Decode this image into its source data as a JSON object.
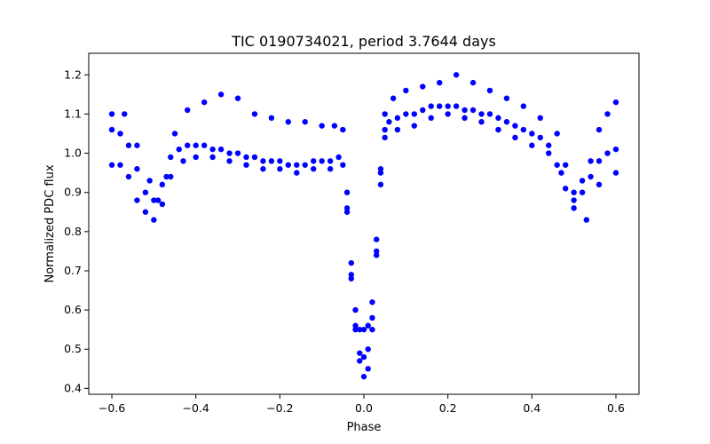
{
  "chart_data": {
    "type": "scatter",
    "title": "TIC 0190734021, period 3.7644 days",
    "xlabel": "Phase",
    "ylabel": "Normalized PDC flux",
    "xlim": [
      -0.655,
      0.655
    ],
    "ylim": [
      0.385,
      1.255
    ],
    "xticks": [
      -0.6,
      -0.4,
      -0.2,
      0.0,
      0.2,
      0.4,
      0.6
    ],
    "xtick_labels": [
      "−0.6",
      "−0.4",
      "−0.2",
      "0.0",
      "0.2",
      "0.4",
      "0.6"
    ],
    "yticks": [
      0.4,
      0.5,
      0.6,
      0.7,
      0.8,
      0.9,
      1.0,
      1.1,
      1.2
    ],
    "ytick_labels": [
      "0.4",
      "0.5",
      "0.6",
      "0.7",
      "0.8",
      "0.9",
      "1.0",
      "1.1",
      "1.2"
    ],
    "grid": false,
    "legend": "none",
    "marker_color": "#0000ff",
    "series": [
      {
        "x": [
          -0.6,
          -0.58,
          -0.56,
          -0.54,
          -0.52,
          -0.5,
          -0.48,
          -0.46,
          -0.44,
          -0.42,
          -0.4,
          -0.38,
          -0.36,
          -0.34,
          -0.32,
          -0.3,
          -0.28,
          -0.26,
          -0.24,
          -0.22,
          -0.2,
          -0.18,
          -0.16,
          -0.14,
          -0.12,
          -0.1,
          -0.08,
          -0.06,
          -0.04,
          -0.03,
          -0.02,
          -0.01,
          0.0,
          0.01,
          0.02,
          0.03,
          0.04,
          0.05,
          0.06,
          0.08,
          0.1,
          0.12,
          0.14,
          0.16,
          0.18,
          0.2,
          0.22,
          0.24,
          0.26,
          0.28,
          0.3,
          0.32,
          0.34,
          0.36,
          0.38,
          0.4,
          0.42,
          0.44,
          0.46,
          0.48,
          0.5,
          0.52,
          0.54,
          0.56,
          0.58,
          0.6
        ],
        "y": [
          1.06,
          1.05,
          1.02,
          0.96,
          0.9,
          0.88,
          0.92,
          0.99,
          1.01,
          1.02,
          1.02,
          1.02,
          1.01,
          1.01,
          1.0,
          1.0,
          0.99,
          0.99,
          0.98,
          0.98,
          0.98,
          0.97,
          0.97,
          0.97,
          0.98,
          0.98,
          0.98,
          0.99,
          0.9,
          0.72,
          0.6,
          0.55,
          0.55,
          0.56,
          0.62,
          0.78,
          0.95,
          1.06,
          1.08,
          1.09,
          1.1,
          1.1,
          1.11,
          1.12,
          1.12,
          1.12,
          1.12,
          1.11,
          1.11,
          1.1,
          1.1,
          1.09,
          1.08,
          1.07,
          1.06,
          1.05,
          1.04,
          1.02,
          0.97,
          0.91,
          0.88,
          0.9,
          0.94,
          0.98,
          1.0,
          1.01
        ]
      },
      {
        "x": [
          -0.6,
          -0.57,
          -0.54,
          -0.51,
          -0.49,
          -0.47,
          -0.45,
          -0.42,
          -0.38,
          -0.34,
          -0.3,
          -0.26,
          -0.22,
          -0.18,
          -0.14,
          -0.1,
          -0.07,
          -0.05,
          -0.04,
          -0.03,
          -0.02,
          -0.01,
          0.0,
          0.01,
          0.02,
          0.03,
          0.04,
          0.05,
          0.07,
          0.1,
          0.14,
          0.18,
          0.22,
          0.26,
          0.3,
          0.34,
          0.38,
          0.42,
          0.46,
          0.48,
          0.5,
          0.52,
          0.54,
          0.56,
          0.58,
          0.6
        ],
        "y": [
          1.1,
          1.1,
          1.02,
          0.93,
          0.88,
          0.94,
          1.05,
          1.11,
          1.13,
          1.15,
          1.14,
          1.1,
          1.09,
          1.08,
          1.08,
          1.07,
          1.07,
          1.06,
          0.86,
          0.68,
          0.55,
          0.47,
          0.43,
          0.45,
          0.55,
          0.75,
          0.96,
          1.1,
          1.14,
          1.16,
          1.17,
          1.18,
          1.2,
          1.18,
          1.16,
          1.14,
          1.12,
          1.09,
          1.05,
          0.97,
          0.9,
          0.93,
          0.98,
          1.06,
          1.1,
          1.13
        ]
      },
      {
        "x": [
          -0.6,
          -0.58,
          -0.56,
          -0.54,
          -0.52,
          -0.5,
          -0.48,
          -0.46,
          -0.43,
          -0.4,
          -0.36,
          -0.32,
          -0.28,
          -0.24,
          -0.2,
          -0.16,
          -0.12,
          -0.08,
          -0.05,
          -0.04,
          -0.03,
          -0.02,
          -0.01,
          0.0,
          0.01,
          0.02,
          0.03,
          0.04,
          0.05,
          0.08,
          0.12,
          0.16,
          0.2,
          0.24,
          0.28,
          0.32,
          0.36,
          0.4,
          0.44,
          0.47,
          0.5,
          0.53,
          0.56,
          0.6
        ],
        "y": [
          0.97,
          0.97,
          0.94,
          0.88,
          0.85,
          0.83,
          0.87,
          0.94,
          0.98,
          0.99,
          0.99,
          0.98,
          0.97,
          0.96,
          0.96,
          0.95,
          0.96,
          0.96,
          0.97,
          0.85,
          0.69,
          0.56,
          0.49,
          0.48,
          0.5,
          0.58,
          0.74,
          0.92,
          1.04,
          1.06,
          1.07,
          1.09,
          1.1,
          1.09,
          1.08,
          1.06,
          1.04,
          1.02,
          1.0,
          0.95,
          0.86,
          0.83,
          0.92,
          0.95
        ]
      }
    ]
  }
}
